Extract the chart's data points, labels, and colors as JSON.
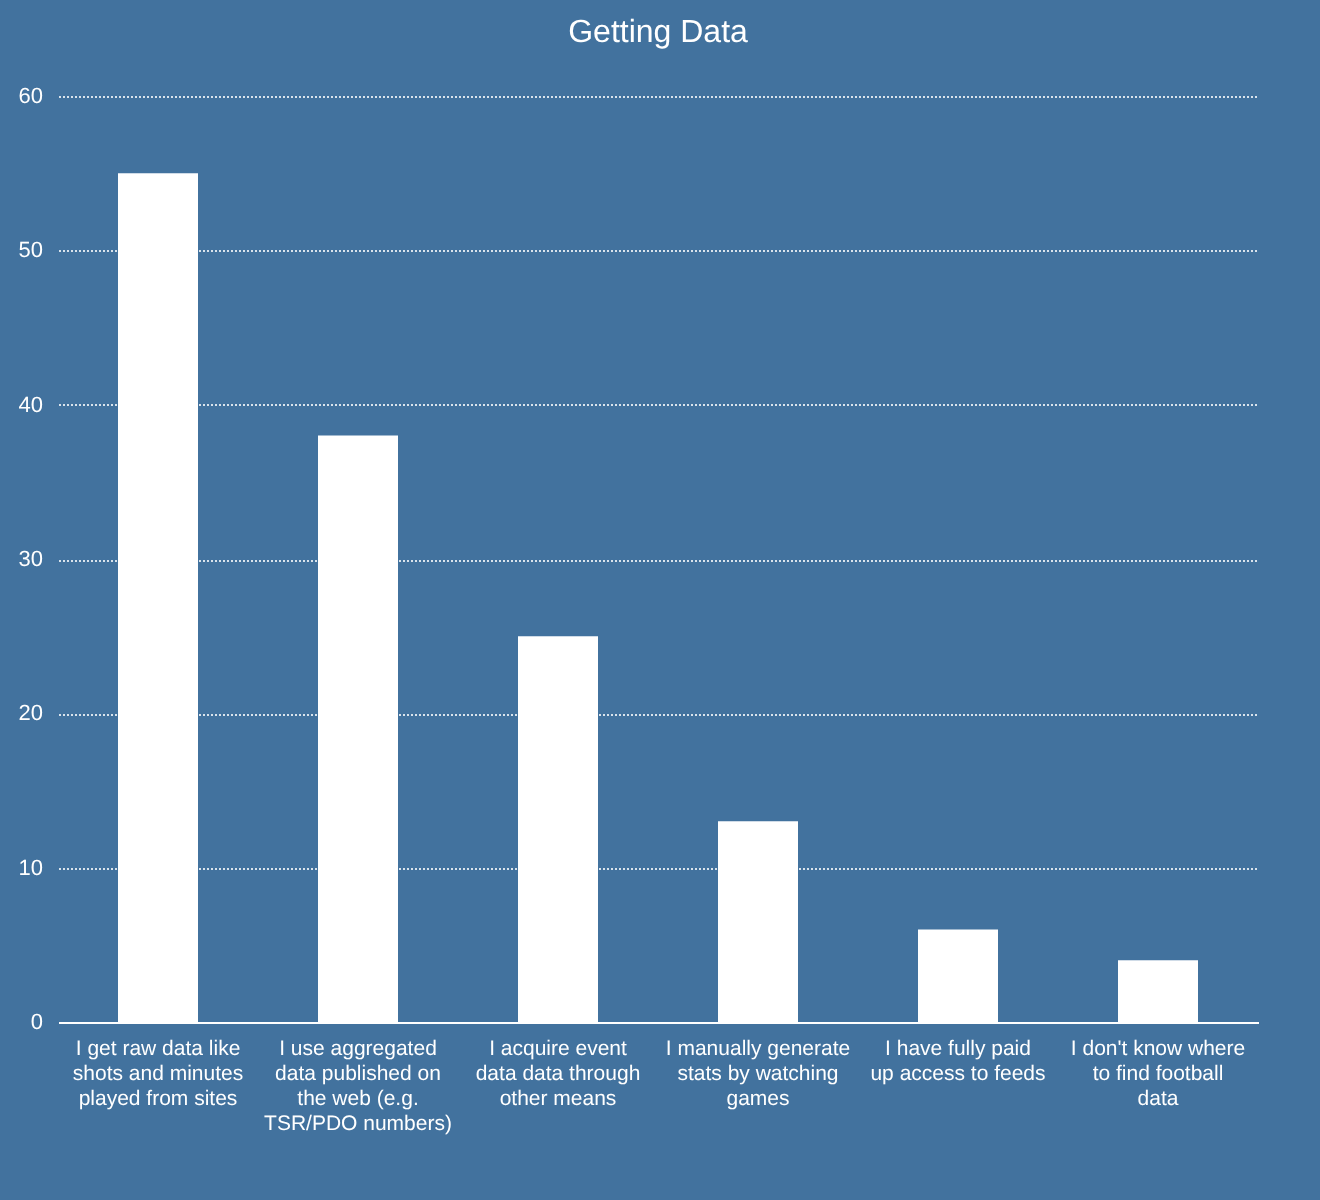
{
  "chart_data": {
    "type": "bar",
    "title": "Getting Data",
    "categories": [
      "I get raw data like shots and minutes played from sites",
      "I use aggregated data published on the web (e.g. TSR/PDO numbers)",
      "I acquire event data data through other means",
      "I manually generate stats by watching games",
      "I have fully paid up access to feeds",
      "I don't know where to find football data"
    ],
    "values": [
      55,
      38,
      25,
      13,
      6,
      4
    ],
    "color": "#ffffff",
    "ylim": [
      0,
      60
    ],
    "yticks": [
      0,
      10,
      20,
      30,
      40,
      50,
      60
    ],
    "grid": true
  }
}
